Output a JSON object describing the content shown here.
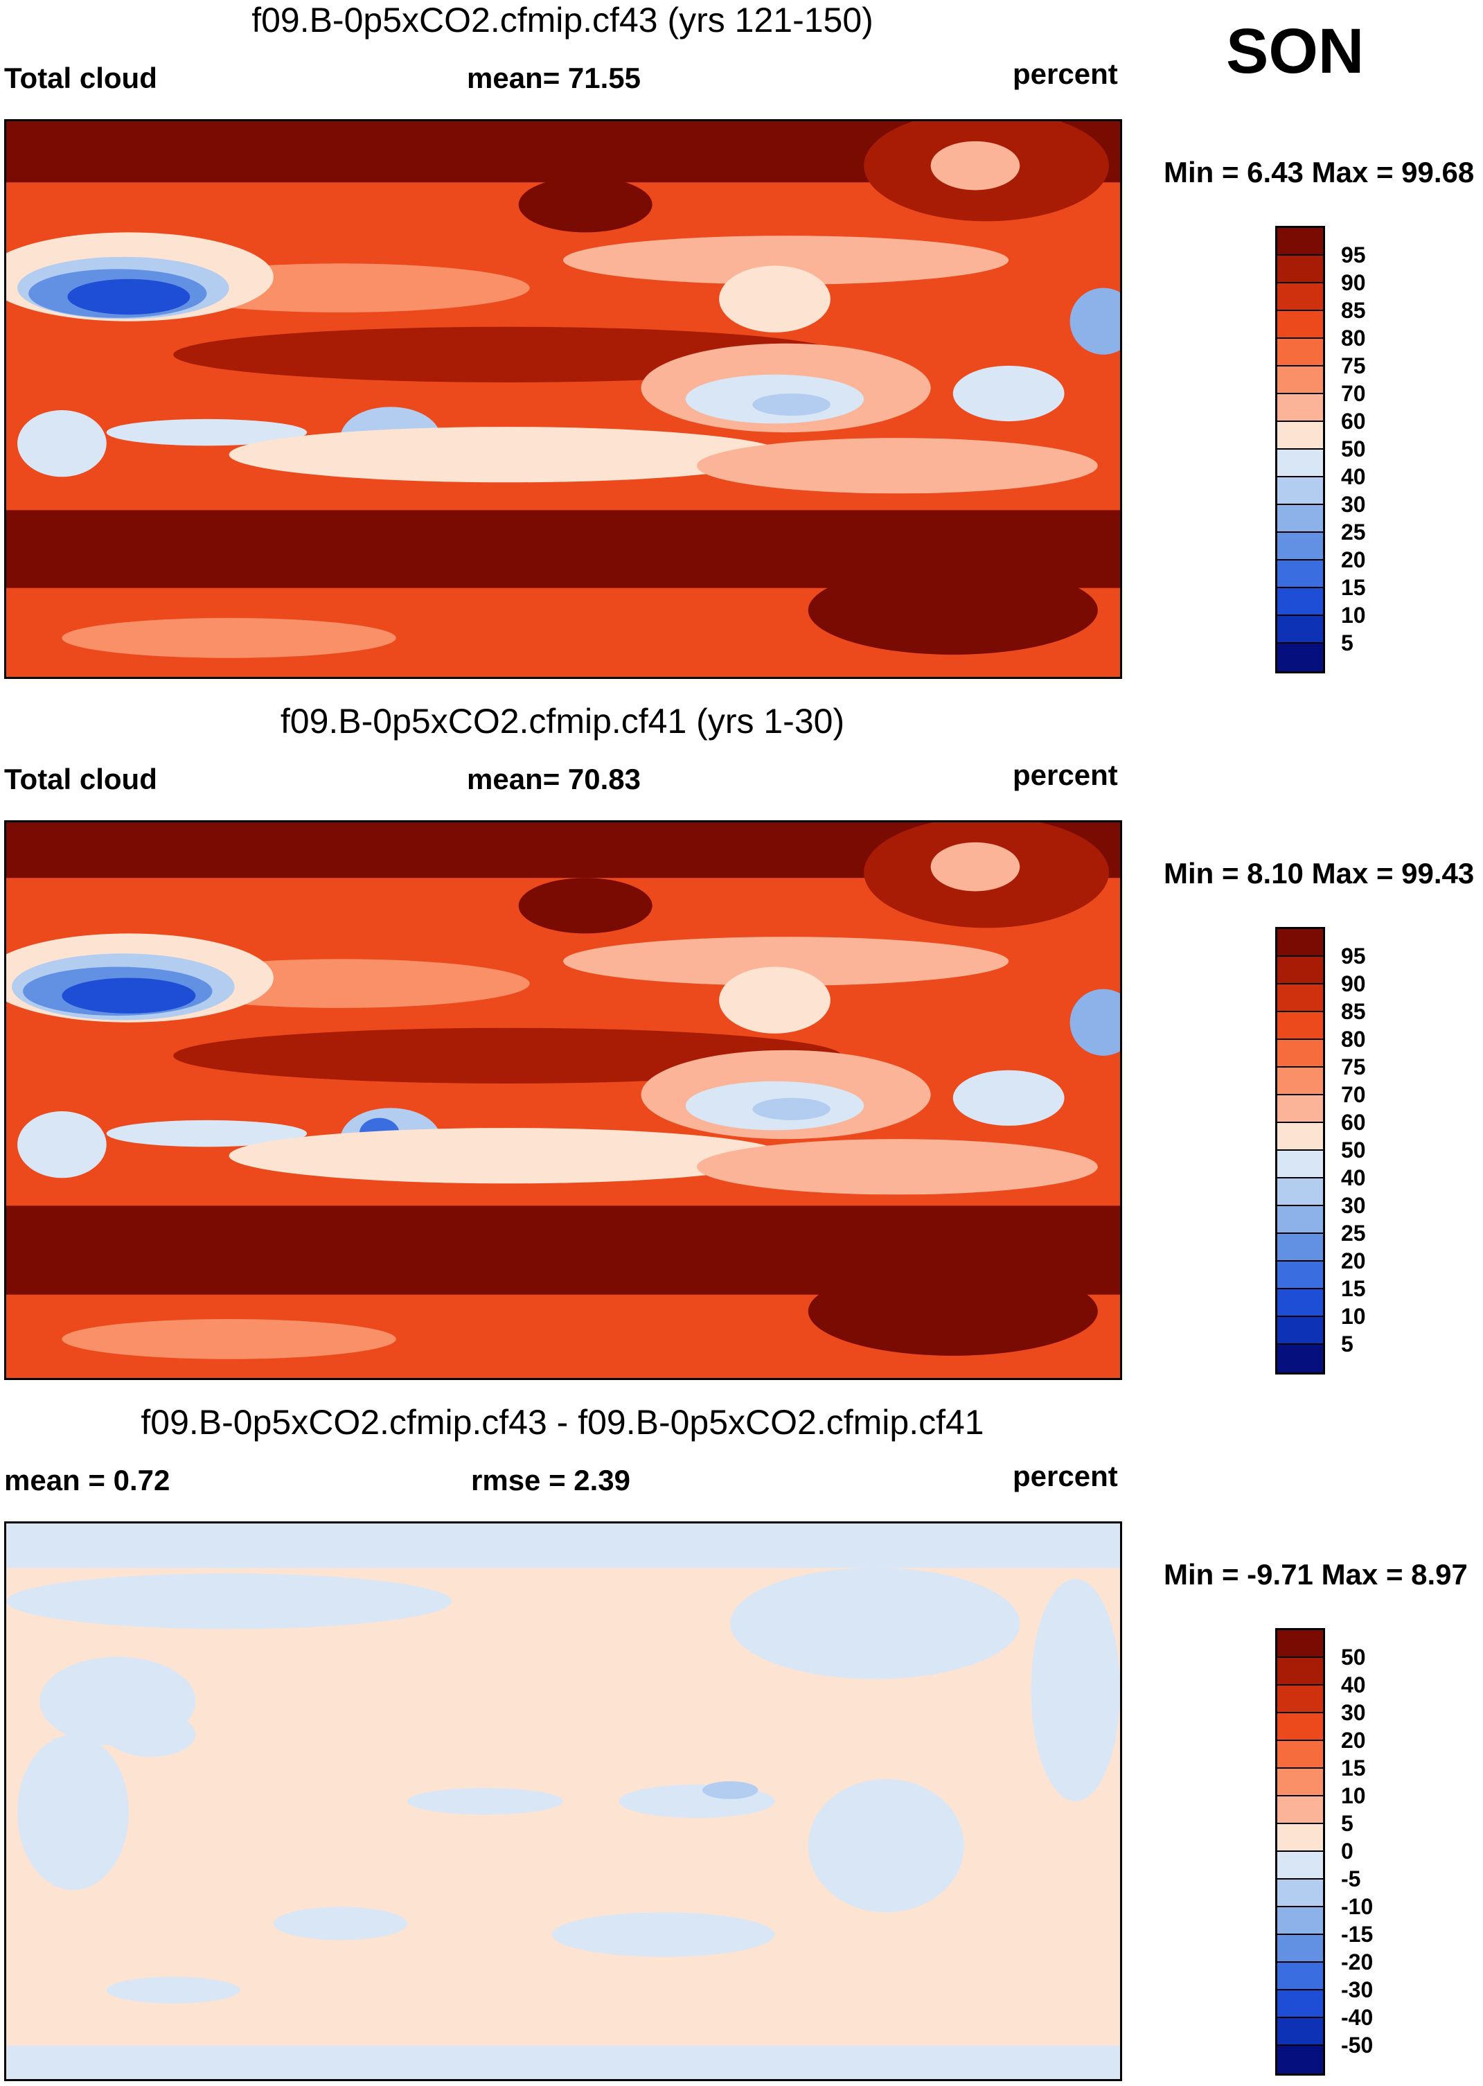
{
  "season": "SON",
  "panels": [
    {
      "id": "top",
      "title": "f09.B-0p5xCO2.cfmip.cf43 (yrs 121-150)",
      "left_label": "Total cloud",
      "center_label": "mean=  71.55",
      "right_label": "percent",
      "minmax": "Min =   6.43 Max =  99.68",
      "values": {
        "mean": 71.55,
        "min": 6.43,
        "max": 99.68
      }
    },
    {
      "id": "middle",
      "title": "f09.B-0p5xCO2.cfmip.cf41 (yrs 1-30)",
      "left_label": "Total cloud",
      "center_label": "mean=  70.83",
      "right_label": "percent",
      "minmax": "Min =   8.10 Max =  99.43",
      "values": {
        "mean": 70.83,
        "min": 8.1,
        "max": 99.43
      }
    },
    {
      "id": "bottom",
      "title": "f09.B-0p5xCO2.cfmip.cf43 - f09.B-0p5xCO2.cfmip.cf41",
      "left_label": "mean =   0.72",
      "center_label": "rmse =   2.39",
      "right_label": "percent",
      "minmax": "Min =  -9.71 Max =   8.97",
      "values": {
        "mean": 0.72,
        "rmse": 2.39,
        "min": -9.71,
        "max": 8.97
      }
    }
  ],
  "colorbars": {
    "abs": {
      "labels": [
        "95",
        "90",
        "85",
        "80",
        "75",
        "70",
        "60",
        "50",
        "40",
        "30",
        "25",
        "20",
        "15",
        "10",
        "5"
      ],
      "colors": [
        "#7a0b02",
        "#a81c05",
        "#cf310f",
        "#ec4a1c",
        "#f66c3c",
        "#f99068",
        "#fbb497",
        "#fde4d2",
        "#d8e6f6",
        "#b3cdf0",
        "#8db2ea",
        "#6291e3",
        "#3a6de0",
        "#1f4ed6",
        "#0d32b6",
        "#050f7e"
      ]
    },
    "diff": {
      "labels": [
        "50",
        "40",
        "30",
        "20",
        "15",
        "10",
        "5",
        "0",
        "-5",
        "-10",
        "-15",
        "-20",
        "-30",
        "-40",
        "-50"
      ],
      "colors": [
        "#7a0b02",
        "#a81c05",
        "#cf310f",
        "#ec4a1c",
        "#f66c3c",
        "#f99068",
        "#fbb497",
        "#fde4d2",
        "#d8e6f6",
        "#b3cdf0",
        "#8db2ea",
        "#6291e3",
        "#3a6de0",
        "#1f4ed6",
        "#0d32b6",
        "#050f7e"
      ]
    }
  }
}
